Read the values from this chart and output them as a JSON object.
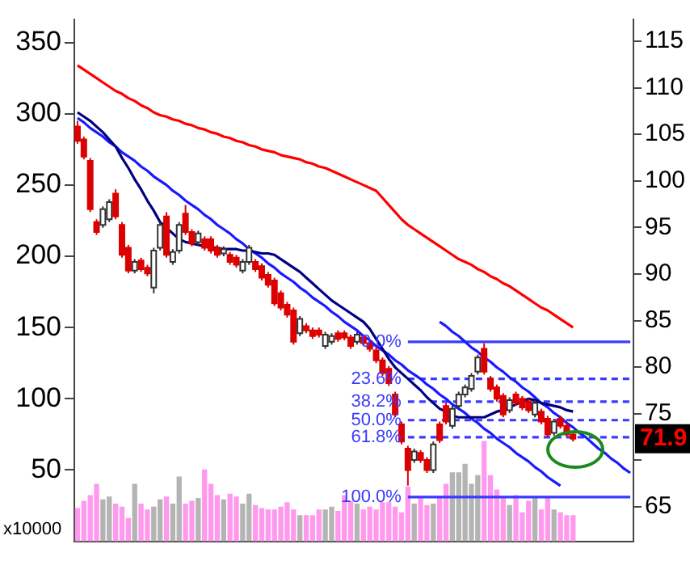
{
  "chart_data": {
    "type": "candlestick",
    "categories": [
      null,
      null,
      null,
      null,
      null,
      null,
      null,
      null,
      null,
      null,
      null,
      null,
      null,
      null,
      null,
      null,
      null,
      null,
      null,
      null,
      null,
      null,
      null,
      null,
      null,
      null,
      null,
      null,
      null,
      null,
      null,
      null,
      null,
      null,
      null,
      null,
      null,
      null,
      null,
      null,
      null,
      null,
      null,
      null,
      null,
      null,
      null,
      null,
      null,
      null,
      null,
      null,
      null,
      null,
      null,
      null,
      null,
      null,
      null,
      null,
      null,
      null,
      null,
      null,
      null,
      null,
      null,
      null,
      null,
      null,
      null,
      null,
      null,
      null,
      null,
      null,
      null,
      null,
      null,
      null,
      null,
      null,
      null,
      null,
      null,
      null,
      null,
      null
    ],
    "ohlc": [
      [
        291,
        295,
        279,
        281
      ],
      [
        282,
        284,
        268,
        270
      ],
      [
        267,
        269,
        231,
        233
      ],
      [
        224,
        226,
        215,
        217
      ],
      [
        222,
        235,
        220,
        233
      ],
      [
        226,
        240,
        224,
        238
      ],
      [
        244,
        247,
        226,
        228
      ],
      [
        222,
        224,
        199,
        201
      ],
      [
        206,
        208,
        188,
        190
      ],
      [
        190,
        198,
        188,
        196
      ],
      [
        197,
        199,
        189,
        191
      ],
      [
        192,
        194,
        186,
        188
      ],
      [
        178,
        206,
        174,
        204
      ],
      [
        206,
        224,
        204,
        222
      ],
      [
        228,
        231,
        199,
        201
      ],
      [
        196,
        205,
        194,
        203
      ],
      [
        204,
        224,
        202,
        222
      ],
      [
        230,
        236,
        215,
        217
      ],
      [
        217,
        219,
        207,
        209
      ],
      [
        210,
        218,
        208,
        216
      ],
      [
        212,
        214,
        204,
        206
      ],
      [
        212,
        214,
        202,
        204
      ],
      [
        206,
        208,
        199,
        201
      ],
      [
        202,
        207,
        200,
        205
      ],
      [
        201,
        203,
        194,
        196
      ],
      [
        199,
        201,
        192,
        194
      ],
      [
        190,
        198,
        188,
        196
      ],
      [
        196,
        208,
        194,
        206
      ],
      [
        196,
        198,
        189,
        191
      ],
      [
        193,
        195,
        183,
        185
      ],
      [
        187,
        189,
        178,
        180
      ],
      [
        183,
        185,
        165,
        167
      ],
      [
        174,
        176,
        162,
        164
      ],
      [
        166,
        168,
        157,
        159
      ],
      [
        162,
        164,
        138,
        140
      ],
      [
        146,
        158,
        144,
        156
      ],
      [
        151,
        153,
        146,
        148
      ],
      [
        148,
        150,
        142,
        144
      ],
      [
        148,
        150,
        143,
        145
      ],
      [
        137,
        147,
        135,
        145
      ],
      [
        140,
        146,
        138,
        144
      ],
      [
        146,
        148,
        140,
        142
      ],
      [
        146,
        148,
        141,
        143
      ],
      [
        143,
        145,
        135,
        137
      ],
      [
        140,
        147,
        138,
        145
      ],
      [
        143,
        145,
        137,
        139
      ],
      [
        139,
        141,
        133,
        135
      ],
      [
        134,
        136,
        125,
        127
      ],
      [
        127,
        129,
        116,
        118
      ],
      [
        121,
        123,
        109,
        111
      ],
      [
        103,
        105,
        87,
        89
      ],
      [
        82,
        84,
        68,
        70
      ],
      [
        65,
        67,
        39,
        50
      ],
      [
        57,
        65,
        55,
        63
      ],
      [
        62,
        64,
        55,
        57
      ],
      [
        57,
        59,
        48,
        50
      ],
      [
        50,
        70,
        48,
        68
      ],
      [
        82,
        84,
        69,
        71
      ],
      [
        95,
        97,
        82,
        84
      ],
      [
        81,
        95,
        79,
        93
      ],
      [
        95,
        105,
        93,
        103
      ],
      [
        103,
        110,
        101,
        108
      ],
      [
        107,
        118,
        105,
        116
      ],
      [
        119,
        131,
        117,
        129
      ],
      [
        135,
        139,
        117,
        119
      ],
      [
        114,
        116,
        105,
        107
      ],
      [
        108,
        110,
        98,
        100
      ],
      [
        102,
        104,
        87,
        89
      ],
      [
        92,
        101,
        90,
        99
      ],
      [
        103,
        105,
        95,
        97
      ],
      [
        100,
        102,
        92,
        94
      ],
      [
        98,
        100,
        90,
        92
      ],
      [
        89,
        99,
        87,
        97
      ],
      [
        91,
        93,
        82,
        84
      ],
      [
        86,
        88,
        73,
        75
      ],
      [
        76,
        86,
        74,
        84
      ],
      [
        86,
        88,
        79,
        81
      ],
      [
        81,
        83,
        73,
        75
      ],
      [
        75,
        77,
        70,
        71.9
      ],
      null,
      null,
      null,
      null,
      null,
      null,
      null,
      null,
      null
    ],
    "colors": [
      "#dd0000",
      "#dd0000",
      "#dd0000",
      "#dd0000",
      "#ffffff",
      "#ffffff",
      "#dd0000",
      "#dd0000",
      "#dd0000",
      "#ffffff",
      "#dd0000",
      "#dd0000",
      "#ffffff",
      "#ffffff",
      "#dd0000",
      "#ffffff",
      "#ffffff",
      "#dd0000",
      "#dd0000",
      "#ffffff",
      "#dd0000",
      "#dd0000",
      "#dd0000",
      "#ffffff",
      "#dd0000",
      "#dd0000",
      "#ffffff",
      "#ffffff",
      "#dd0000",
      "#dd0000",
      "#dd0000",
      "#dd0000",
      "#dd0000",
      "#dd0000",
      "#dd0000",
      "#ffffff",
      "#dd0000",
      "#dd0000",
      "#dd0000",
      "#ffffff",
      "#ffffff",
      "#dd0000",
      "#dd0000",
      "#dd0000",
      "#ffffff",
      "#dd0000",
      "#dd0000",
      "#dd0000",
      "#dd0000",
      "#dd0000",
      "#dd0000",
      "#dd0000",
      "#dd0000",
      "#ffffff",
      "#dd0000",
      "#dd0000",
      "#ffffff",
      "#dd0000",
      "#dd0000",
      "#ffffff",
      "#ffffff",
      "#ffffff",
      "#ffffff",
      "#ffffff",
      "#dd0000",
      "#dd0000",
      "#dd0000",
      "#dd0000",
      "#ffffff",
      "#dd0000",
      "#dd0000",
      "#dd0000",
      "#ffffff",
      "#dd0000",
      "#dd0000",
      "#ffffff",
      "#dd0000",
      "#dd0000",
      "#dd0000",
      null,
      null,
      null,
      null,
      null,
      null,
      null,
      null,
      null
    ],
    "ylim": [
      0,
      366
    ],
    "yticks": [
      50,
      100,
      150,
      200,
      250,
      300,
      350
    ],
    "y2lim": [
      61.3,
      117.3
    ],
    "y2ticks": [
      65,
      {
        "value": 70,
        "label": null
      },
      75,
      80,
      85,
      90,
      95,
      100,
      105,
      110,
      115
    ],
    "tick_labels": "y",
    "grid": false,
    "series": [
      {
        "type": "bar",
        "values": [
          23,
          28,
          32,
          40,
          29,
          31,
          26,
          24,
          16,
          40,
          26,
          22,
          24,
          29,
          31,
          26,
          45,
          26,
          28,
          30,
          50,
          40,
          32,
          29,
          33,
          31,
          26,
          33,
          25,
          23,
          22,
          22,
          24,
          27,
          22,
          18,
          18,
          18,
          22,
          22,
          24,
          21,
          32,
          28,
          26,
          22,
          24,
          22,
          27,
          27,
          24,
          20,
          38,
          26,
          30,
          25,
          26,
          30,
          40,
          48,
          48,
          54,
          40,
          46,
          70,
          46,
          36,
          30,
          25,
          32,
          20,
          28,
          30,
          22,
          30,
          22,
          20,
          18,
          18,
          null,
          null,
          null,
          null,
          null,
          null,
          null,
          null,
          null
        ],
        "colors": [
          "#ff99ee",
          "#ff99ee",
          "#ff99ee",
          "#ff99ee",
          "#b4b4b4",
          "#b4b4b4",
          "#ff99ee",
          "#ff99ee",
          "#ff99ee",
          "#b4b4b4",
          "#ff99ee",
          "#ff99ee",
          "#b4b4b4",
          "#b4b4b4",
          "#ff99ee",
          "#b4b4b4",
          "#b4b4b4",
          "#ff99ee",
          "#ff99ee",
          "#b4b4b4",
          "#ff99ee",
          "#ff99ee",
          "#ff99ee",
          "#b4b4b4",
          "#ff99ee",
          "#ff99ee",
          "#b4b4b4",
          "#b4b4b4",
          "#ff99ee",
          "#ff99ee",
          "#ff99ee",
          "#ff99ee",
          "#ff99ee",
          "#ff99ee",
          "#ff99ee",
          "#b4b4b4",
          "#ff99ee",
          "#ff99ee",
          "#ff99ee",
          "#b4b4b4",
          "#b4b4b4",
          "#ff99ee",
          "#ff99ee",
          "#ff99ee",
          "#b4b4b4",
          "#ff99ee",
          "#ff99ee",
          "#ff99ee",
          "#ff99ee",
          "#ff99ee",
          "#ff99ee",
          "#ff99ee",
          "#ff99ee",
          "#b4b4b4",
          "#ff99ee",
          "#ff99ee",
          "#b4b4b4",
          "#ff99ee",
          "#ff99ee",
          "#b4b4b4",
          "#b4b4b4",
          "#b4b4b4",
          "#b4b4b4",
          "#b4b4b4",
          "#ff99ee",
          "#ff99ee",
          "#ff99ee",
          "#ff99ee",
          "#b4b4b4",
          "#ff99ee",
          "#ff99ee",
          "#ff99ee",
          "#b4b4b4",
          "#ff99ee",
          "#ff99ee",
          "#b4b4b4",
          "#ff99ee",
          "#ff99ee",
          "#ff99ee",
          null,
          null,
          null,
          null,
          null,
          null,
          null,
          null,
          null
        ]
      },
      {
        "type": "line",
        "color": "#ff0000",
        "values": [
          334,
          331,
          328,
          325,
          322,
          319,
          316,
          314,
          311,
          309,
          306,
          304,
          301,
          299,
          298,
          296,
          295,
          293,
          292,
          290,
          289,
          287,
          286,
          284,
          283,
          281,
          280,
          278,
          277,
          275,
          274,
          273,
          271,
          270,
          269,
          268,
          266,
          265,
          263,
          262,
          260,
          258,
          256,
          254,
          252,
          250,
          248,
          246,
          241,
          236,
          231,
          226,
          222,
          219,
          216,
          213,
          210,
          207,
          204,
          201,
          198,
          196,
          194,
          191,
          189,
          186,
          184,
          181,
          179,
          176,
          173,
          170,
          167,
          164,
          162,
          159,
          156,
          153,
          150,
          null,
          null,
          null,
          null,
          null,
          null,
          null,
          null,
          null
        ]
      },
      {
        "type": "line",
        "color": "#000080",
        "values": [
          301,
          298,
          295,
          291,
          287,
          282,
          277,
          269,
          262,
          254,
          247,
          239,
          232,
          224,
          220,
          216,
          212,
          210,
          209,
          208,
          207,
          206,
          206,
          205,
          205,
          205,
          204,
          204,
          203,
          202,
          202,
          201,
          198,
          195,
          192,
          189,
          185,
          181,
          177,
          173,
          169,
          166,
          163,
          160,
          157,
          154,
          149,
          142,
          135,
          128,
          122,
          118,
          114,
          110,
          106,
          101,
          97,
          93,
          91,
          88,
          87,
          87,
          87,
          87,
          87,
          89,
          91,
          92,
          94,
          96,
          98,
          100,
          99,
          97,
          96,
          95,
          94,
          92,
          91,
          null,
          null,
          null,
          null,
          null,
          null,
          null,
          null,
          null
        ]
      },
      {
        "type": "line",
        "color": "#1a1aff",
        "values": [
          297,
          294,
          290,
          287,
          284,
          280,
          277,
          273,
          270,
          267,
          263,
          260,
          256,
          253,
          250,
          246,
          243,
          239,
          236,
          233,
          229,
          226,
          222,
          219,
          216,
          212,
          209,
          205,
          202,
          199,
          195,
          192,
          188,
          185,
          182,
          178,
          175,
          171,
          168,
          165,
          161,
          158,
          154,
          151,
          148,
          144,
          141,
          137,
          134,
          131,
          127,
          124,
          120,
          117,
          114,
          110,
          107,
          103,
          100,
          96,
          93,
          90,
          86,
          83,
          79,
          76,
          72,
          69,
          66,
          62,
          59,
          56,
          52,
          49,
          45,
          42,
          39,
          null,
          null,
          null,
          null,
          null,
          null,
          null,
          null,
          null,
          null,
          null
        ]
      },
      {
        "type": "line",
        "color": "#1a1aff",
        "values": [
          null,
          null,
          null,
          null,
          null,
          null,
          null,
          null,
          null,
          null,
          null,
          null,
          null,
          null,
          null,
          null,
          null,
          null,
          null,
          null,
          null,
          null,
          null,
          null,
          null,
          null,
          null,
          null,
          null,
          null,
          null,
          null,
          null,
          null,
          null,
          null,
          null,
          null,
          null,
          null,
          null,
          null,
          null,
          null,
          null,
          null,
          null,
          null,
          null,
          null,
          null,
          null,
          null,
          null,
          null,
          null,
          null,
          154,
          151,
          147,
          144,
          140,
          136,
          133,
          129,
          126,
          122,
          119,
          115,
          112,
          108,
          105,
          101,
          97,
          94,
          90,
          87,
          83,
          80,
          76,
          73,
          69,
          65,
          62,
          58,
          55,
          51,
          48
        ]
      },
      {
        "type": "line",
        "name": "0.0%",
        "color": "#3a3aff",
        "values": [
          null,
          null,
          null,
          null,
          null,
          null,
          null,
          null,
          null,
          null,
          null,
          null,
          null,
          null,
          null,
          null,
          null,
          null,
          null,
          null,
          null,
          null,
          null,
          null,
          null,
          null,
          null,
          null,
          null,
          null,
          null,
          null,
          null,
          null,
          null,
          null,
          null,
          null,
          null,
          null,
          null,
          null,
          null,
          null,
          null,
          null,
          null,
          null,
          null,
          null,
          null,
          null,
          140,
          140,
          140,
          140,
          140,
          140,
          140,
          140,
          140,
          140,
          140,
          140,
          140,
          140,
          140,
          140,
          140,
          140,
          140,
          140,
          140,
          140,
          140,
          140,
          140,
          140,
          140,
          140,
          140,
          140,
          140,
          140,
          140,
          140,
          140,
          140
        ]
      },
      {
        "type": "line",
        "name": "23.6%",
        "color": "#3a3aff",
        "line_style": "dashed",
        "values": [
          null,
          null,
          null,
          null,
          null,
          null,
          null,
          null,
          null,
          null,
          null,
          null,
          null,
          null,
          null,
          null,
          null,
          null,
          null,
          null,
          null,
          null,
          null,
          null,
          null,
          null,
          null,
          null,
          null,
          null,
          null,
          null,
          null,
          null,
          null,
          null,
          null,
          null,
          null,
          null,
          null,
          null,
          null,
          null,
          null,
          null,
          null,
          null,
          null,
          null,
          null,
          null,
          114,
          114,
          114,
          114,
          114,
          114,
          114,
          114,
          114,
          114,
          114,
          114,
          114,
          114,
          114,
          114,
          114,
          114,
          114,
          114,
          114,
          114,
          114,
          114,
          114,
          114,
          114,
          114,
          114,
          114,
          114,
          114,
          114,
          114,
          114,
          114
        ]
      },
      {
        "type": "line",
        "name": "38.2%",
        "color": "#3a3aff",
        "line_style": "dashed",
        "values": [
          null,
          null,
          null,
          null,
          null,
          null,
          null,
          null,
          null,
          null,
          null,
          null,
          null,
          null,
          null,
          null,
          null,
          null,
          null,
          null,
          null,
          null,
          null,
          null,
          null,
          null,
          null,
          null,
          null,
          null,
          null,
          null,
          null,
          null,
          null,
          null,
          null,
          null,
          null,
          null,
          null,
          null,
          null,
          null,
          null,
          null,
          null,
          null,
          null,
          null,
          null,
          null,
          98,
          98,
          98,
          98,
          98,
          98,
          98,
          98,
          98,
          98,
          98,
          98,
          98,
          98,
          98,
          98,
          98,
          98,
          98,
          98,
          98,
          98,
          98,
          98,
          98,
          98,
          98,
          98,
          98,
          98,
          98,
          98,
          98,
          98,
          98,
          98
        ]
      },
      {
        "type": "line",
        "name": "50.0%",
        "color": "#3a3aff",
        "line_style": "dashed",
        "values": [
          null,
          null,
          null,
          null,
          null,
          null,
          null,
          null,
          null,
          null,
          null,
          null,
          null,
          null,
          null,
          null,
          null,
          null,
          null,
          null,
          null,
          null,
          null,
          null,
          null,
          null,
          null,
          null,
          null,
          null,
          null,
          null,
          null,
          null,
          null,
          null,
          null,
          null,
          null,
          null,
          null,
          null,
          null,
          null,
          null,
          null,
          null,
          null,
          null,
          null,
          null,
          null,
          85,
          85,
          85,
          85,
          85,
          85,
          85,
          85,
          85,
          85,
          85,
          85,
          85,
          85,
          85,
          85,
          85,
          85,
          85,
          85,
          85,
          85,
          85,
          85,
          85,
          85,
          85,
          85,
          85,
          85,
          85,
          85,
          85,
          85,
          85,
          85
        ]
      },
      {
        "type": "line",
        "name": "61.8%",
        "color": "#3a3aff",
        "line_style": "dashed",
        "values": [
          null,
          null,
          null,
          null,
          null,
          null,
          null,
          null,
          null,
          null,
          null,
          null,
          null,
          null,
          null,
          null,
          null,
          null,
          null,
          null,
          null,
          null,
          null,
          null,
          null,
          null,
          null,
          null,
          null,
          null,
          null,
          null,
          null,
          null,
          null,
          null,
          null,
          null,
          null,
          null,
          null,
          null,
          null,
          null,
          null,
          null,
          null,
          null,
          null,
          null,
          null,
          null,
          73,
          73,
          73,
          73,
          73,
          73,
          73,
          73,
          73,
          73,
          73,
          73,
          73,
          73,
          73,
          73,
          73,
          73,
          73,
          73,
          73,
          73,
          73,
          73,
          73,
          73,
          73,
          73,
          73,
          73,
          73,
          73,
          73,
          73,
          73,
          73
        ]
      },
      {
        "type": "line",
        "name": "100.0%",
        "color": "#3a3aff",
        "values": [
          null,
          null,
          null,
          null,
          null,
          null,
          null,
          null,
          null,
          null,
          null,
          null,
          null,
          null,
          null,
          null,
          null,
          null,
          null,
          null,
          null,
          null,
          null,
          null,
          null,
          null,
          null,
          null,
          null,
          null,
          null,
          null,
          null,
          null,
          null,
          null,
          null,
          null,
          null,
          null,
          null,
          null,
          null,
          null,
          null,
          null,
          null,
          null,
          null,
          null,
          null,
          null,
          31,
          31,
          31,
          31,
          31,
          31,
          31,
          31,
          31,
          31,
          31,
          31,
          31,
          31,
          31,
          31,
          31,
          31,
          31,
          31,
          31,
          31,
          31,
          31,
          31,
          31,
          31,
          31,
          31,
          31,
          31,
          31,
          31,
          31,
          31,
          31
        ]
      }
    ],
    "annotations": [
      "x10000",
      {
        "text": "71.9",
        "y": 71.9
      }
    ]
  }
}
